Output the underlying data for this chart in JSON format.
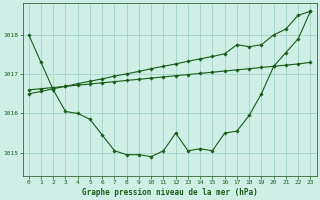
{
  "title": "Graphe pression niveau de la mer (hPa)",
  "background_color": "#ceeee6",
  "grid_color": "#9dcfc4",
  "line_color": "#1a5c1a",
  "spine_color": "#336633",
  "xlim": [
    -0.5,
    23.5
  ],
  "ylim": [
    1014.4,
    1018.8
  ],
  "yticks": [
    1015,
    1016,
    1017,
    1018
  ],
  "xticks": [
    0,
    1,
    2,
    3,
    4,
    5,
    6,
    7,
    8,
    9,
    10,
    11,
    12,
    13,
    14,
    15,
    16,
    17,
    18,
    19,
    20,
    21,
    22,
    23
  ],
  "line_curve": [
    1018.0,
    1017.3,
    1016.6,
    1016.05,
    1016.0,
    1015.85,
    1015.45,
    1015.05,
    1014.95,
    1014.95,
    1014.9,
    1015.05,
    1015.5,
    1015.05,
    1015.1,
    1015.05,
    1015.5,
    1015.55,
    1015.95,
    1016.5,
    1017.2,
    1017.55,
    1017.9,
    1018.6
  ],
  "line_straight1": [
    1016.6,
    1016.63,
    1016.66,
    1016.69,
    1016.72,
    1016.75,
    1016.78,
    1016.81,
    1016.84,
    1016.87,
    1016.9,
    1016.93,
    1016.96,
    1016.99,
    1017.02,
    1017.05,
    1017.08,
    1017.11,
    1017.14,
    1017.17,
    1017.2,
    1017.23,
    1017.26,
    1017.3
  ],
  "line_straight2": [
    1016.5,
    1016.56,
    1016.63,
    1016.69,
    1016.76,
    1016.82,
    1016.88,
    1016.95,
    1017.01,
    1017.07,
    1017.14,
    1017.2,
    1017.26,
    1017.33,
    1017.39,
    1017.45,
    1017.52,
    1017.75,
    1017.7,
    1017.75,
    1018.0,
    1018.15,
    1018.5,
    1018.6
  ]
}
